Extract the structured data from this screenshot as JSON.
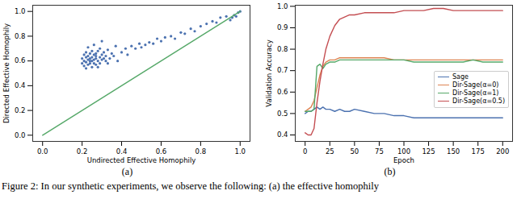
{
  "caption": "Figure 2: In our synthetic experiments, we observe the following: (a) the effective homophily",
  "chart_data": [
    {
      "type": "scatter",
      "title": "(a)",
      "x_label": "Undirected Effective Homophily",
      "y_label": "Directed Effective Homophily",
      "xlim": [
        -0.05,
        1.05
      ],
      "ylim": [
        -0.05,
        1.05
      ],
      "xticks": [
        {
          "value": 0,
          "label": "0.0"
        },
        0.2,
        0.4,
        0.6,
        0.8,
        {
          "value": 1,
          "label": "1.0"
        }
      ],
      "yticks": [
        {
          "value": 0,
          "label": "0.0"
        },
        0.2,
        0.4,
        0.6,
        0.8,
        {
          "value": 1,
          "label": "1.0"
        }
      ],
      "series": [
        {
          "type": "scatter",
          "color": "#4c72b0",
          "x": [
            0.2,
            0.2,
            0.21,
            0.21,
            0.21,
            0.22,
            0.22,
            0.22,
            0.22,
            0.23,
            0.23,
            0.23,
            0.23,
            0.24,
            0.24,
            0.24,
            0.24,
            0.25,
            0.25,
            0.25,
            0.25,
            0.26,
            0.26,
            0.26,
            0.26,
            0.27,
            0.27,
            0.27,
            0.27,
            0.28,
            0.28,
            0.28,
            0.29,
            0.29,
            0.29,
            0.3,
            0.3,
            0.3,
            0.31,
            0.31,
            0.32,
            0.32,
            0.33,
            0.33,
            0.34,
            0.35,
            0.36,
            0.37,
            0.38,
            0.4,
            0.42,
            0.43,
            0.45,
            0.47,
            0.49,
            0.5,
            0.52,
            0.54,
            0.56,
            0.58,
            0.6,
            0.62,
            0.65,
            0.67,
            0.7,
            0.72,
            0.75,
            0.77,
            0.8,
            0.83,
            0.86,
            0.88,
            0.9,
            0.93,
            0.95,
            0.96,
            0.97,
            0.98,
            0.99,
            1.0
          ],
          "values": [
            0.62,
            0.58,
            0.65,
            0.6,
            0.56,
            0.63,
            0.59,
            0.67,
            0.54,
            0.61,
            0.57,
            0.64,
            0.71,
            0.6,
            0.66,
            0.58,
            0.62,
            0.55,
            0.63,
            0.68,
            0.6,
            0.65,
            0.58,
            0.61,
            0.73,
            0.62,
            0.57,
            0.66,
            0.64,
            0.6,
            0.68,
            0.55,
            0.63,
            0.7,
            0.58,
            0.65,
            0.61,
            0.76,
            0.62,
            0.67,
            0.6,
            0.64,
            0.58,
            0.69,
            0.62,
            0.66,
            0.64,
            0.72,
            0.6,
            0.67,
            0.7,
            0.65,
            0.72,
            0.7,
            0.74,
            0.71,
            0.73,
            0.75,
            0.74,
            0.78,
            0.76,
            0.79,
            0.8,
            0.78,
            0.83,
            0.82,
            0.86,
            0.84,
            0.88,
            0.9,
            0.92,
            0.91,
            0.95,
            0.96,
            0.93,
            0.95,
            0.97,
            0.96,
            0.99,
            1.0
          ]
        },
        {
          "type": "line",
          "color": "#55a868",
          "x": [
            0,
            1
          ],
          "values": [
            0,
            1
          ]
        }
      ]
    },
    {
      "type": "line",
      "title": "(b)",
      "x_label": "Epoch",
      "y_label": "Validation Accuracy",
      "xlim": [
        -10,
        210
      ],
      "ylim": [
        0.37,
        1.005
      ],
      "xticks": [
        0,
        25,
        50,
        75,
        100,
        125,
        150,
        175,
        200
      ],
      "yticks": [
        0.4,
        0.5,
        0.6,
        0.7,
        0.8,
        0.9,
        {
          "value": 1,
          "label": "1.0"
        }
      ],
      "legend": "center right",
      "x": [
        0,
        3,
        6,
        9,
        12,
        15,
        18,
        21,
        25,
        30,
        35,
        40,
        45,
        50,
        60,
        70,
        80,
        90,
        100,
        110,
        120,
        130,
        140,
        150,
        160,
        170,
        180,
        190,
        200
      ],
      "series": [
        {
          "name": "Sage",
          "color": "#4c72b0",
          "values": [
            0.5,
            0.51,
            0.51,
            0.52,
            0.53,
            0.52,
            0.53,
            0.52,
            0.52,
            0.51,
            0.52,
            0.51,
            0.51,
            0.52,
            0.51,
            0.5,
            0.5,
            0.49,
            0.49,
            0.48,
            0.48,
            0.48,
            0.48,
            0.48,
            0.48,
            0.48,
            0.48,
            0.48,
            0.48
          ]
        },
        {
          "name": "Dir-Sage(α=0)",
          "color": "#dd8452",
          "values": [
            0.51,
            0.52,
            0.53,
            0.56,
            0.62,
            0.68,
            0.72,
            0.74,
            0.75,
            0.75,
            0.76,
            0.76,
            0.76,
            0.76,
            0.76,
            0.76,
            0.76,
            0.75,
            0.75,
            0.75,
            0.75,
            0.75,
            0.75,
            0.75,
            0.75,
            0.75,
            0.75,
            0.75,
            0.75
          ]
        },
        {
          "name": "Dir-Sage(α=1)",
          "color": "#55a868",
          "values": [
            0.51,
            0.51,
            0.51,
            0.52,
            0.72,
            0.73,
            0.71,
            0.73,
            0.74,
            0.74,
            0.75,
            0.75,
            0.75,
            0.75,
            0.75,
            0.75,
            0.75,
            0.75,
            0.75,
            0.74,
            0.74,
            0.74,
            0.74,
            0.74,
            0.74,
            0.75,
            0.74,
            0.74,
            0.74
          ]
        },
        {
          "name": "Dir-Sage(α=0.5)",
          "color": "#c44e52",
          "values": [
            0.41,
            0.4,
            0.4,
            0.43,
            0.55,
            0.65,
            0.73,
            0.8,
            0.86,
            0.91,
            0.94,
            0.95,
            0.96,
            0.96,
            0.97,
            0.97,
            0.97,
            0.97,
            0.98,
            0.98,
            0.98,
            0.99,
            0.99,
            0.98,
            0.98,
            0.98,
            0.98,
            0.98,
            0.98
          ]
        }
      ]
    }
  ]
}
